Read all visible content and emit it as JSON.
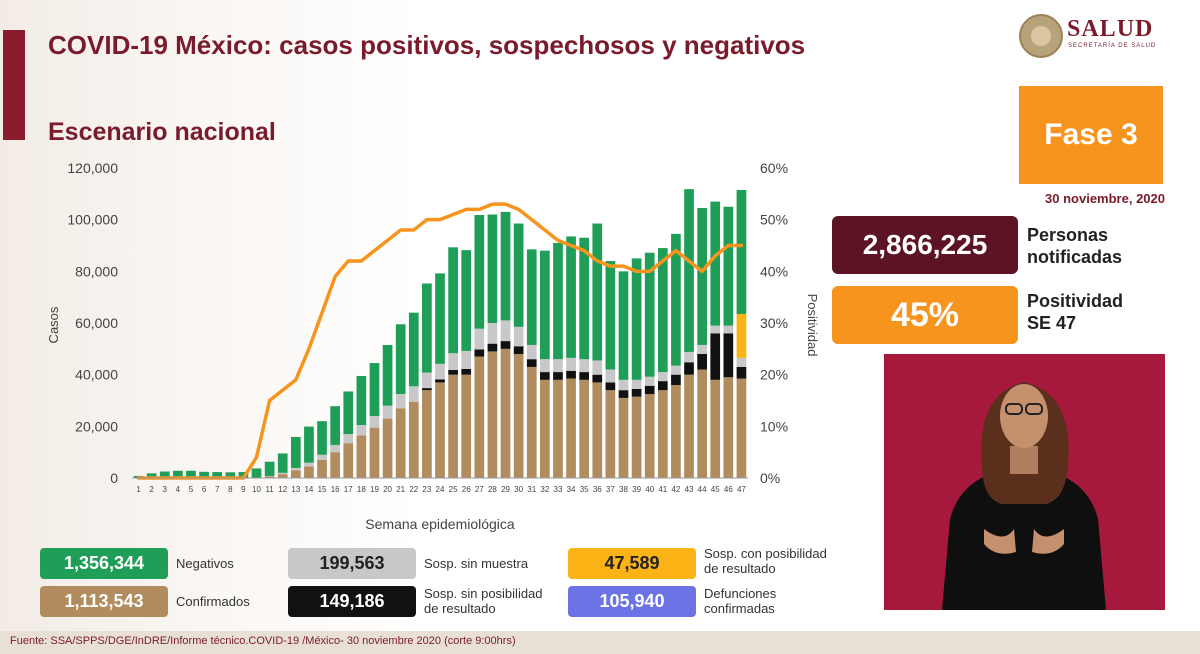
{
  "header": {
    "title": "COVID-19 México: casos positivos, sospechosos y negativos",
    "subtitle": "Escenario nacional"
  },
  "logo": {
    "name": "SALUD",
    "sub": "SECRETARÍA DE SALUD"
  },
  "phase": {
    "label": "Fase 3",
    "date": "30 noviembre, 2020"
  },
  "stats": {
    "notified_value": "2,866,225",
    "notified_label_1": "Personas",
    "notified_label_2": "notificadas",
    "positivity_value": "45%",
    "positivity_label_1": "Positividad",
    "positivity_label_2": "SE 47"
  },
  "legend": {
    "negativos_value": "1,356,344",
    "negativos_label": "Negativos",
    "confirmados_value": "1,113,543",
    "confirmados_label": "Confirmados",
    "sin_muestra_value": "199,563",
    "sin_muestra_label": "Sosp. sin muestra",
    "sin_posibilidad_value": "149,186",
    "sin_posibilidad_label_1": "Sosp. sin posibilidad",
    "sin_posibilidad_label_2": "de resultado",
    "con_posibilidad_value": "47,589",
    "con_posibilidad_label_1": "Sosp. con posibilidad",
    "con_posibilidad_label_2": "de resultado",
    "defunciones_value": "105,940",
    "defunciones_label_1": "Defunciones",
    "defunciones_label_2": "confirmadas"
  },
  "footer": {
    "source": "Fuente: SSA/SPPS/DGE/InDRE/Informe técnico.COVID-19 /México- 30 noviembre 2020 (corte 9:00hrs)"
  },
  "colors": {
    "negativos": "#1e9e57",
    "confirmados": "#b08c5e",
    "sin_muestra": "#c8c8c8",
    "sin_posibilidad": "#111111",
    "con_posibilidad": "#fbb316",
    "defunciones": "#6b73e6",
    "positividad": "#f7941d"
  },
  "chart_data": {
    "type": "bar",
    "stacked": true,
    "xlabel": "Semana epidemiológica",
    "ylabel": "Casos",
    "y2label": "Positividad",
    "ylim": [
      0,
      120000
    ],
    "y2lim": [
      0,
      60
    ],
    "yticks": [
      "0",
      "20,000",
      "40,000",
      "60,000",
      "80,000",
      "100,000",
      "120,000"
    ],
    "y2ticks": [
      "0%",
      "10%",
      "20%",
      "30%",
      "40%",
      "50%",
      "60%"
    ],
    "grid": false,
    "categories": [
      "1",
      "2",
      "3",
      "4",
      "5",
      "6",
      "7",
      "8",
      "9",
      "10",
      "11",
      "12",
      "13",
      "14",
      "15",
      "16",
      "17",
      "18",
      "19",
      "20",
      "21",
      "22",
      "23",
      "24",
      "25",
      "26",
      "27",
      "28",
      "29",
      "30",
      "31",
      "32",
      "33",
      "34",
      "35",
      "36",
      "37",
      "38",
      "39",
      "40",
      "41",
      "42",
      "43",
      "44",
      "45",
      "46",
      "47"
    ],
    "series": [
      {
        "name": "Confirmados",
        "color_key": "confirmados",
        "values": [
          0,
          0,
          0,
          0,
          0,
          0,
          0,
          0,
          0,
          100,
          600,
          1500,
          3000,
          4500,
          7000,
          10000,
          13500,
          16500,
          19500,
          23000,
          27000,
          29500,
          34000,
          37000,
          40000,
          40000,
          47000,
          49000,
          50000,
          48000,
          43000,
          38000,
          38000,
          38500,
          38000,
          37000,
          34000,
          31000,
          31500,
          32500,
          34000,
          36000,
          40000,
          42000,
          38000,
          39000,
          38500
        ]
      },
      {
        "name": "Sosp. sin posibilidad de resultado",
        "color_key": "sin_posibilidad",
        "values": [
          0,
          0,
          0,
          0,
          0,
          0,
          0,
          0,
          0,
          0,
          0,
          0,
          0,
          0,
          0,
          0,
          0,
          0,
          0,
          0,
          0,
          0,
          800,
          1200,
          1800,
          2200,
          2800,
          3000,
          3000,
          3000,
          3000,
          3000,
          3000,
          3000,
          3000,
          3000,
          3000,
          3000,
          3000,
          3200,
          3500,
          4000,
          4800,
          6000,
          18000,
          17000,
          4500
        ]
      },
      {
        "name": "Sosp. sin muestra",
        "color_key": "sin_muestra",
        "values": [
          0,
          0,
          0,
          0,
          0,
          0,
          0,
          0,
          0,
          100,
          200,
          500,
          900,
          1400,
          2000,
          2800,
          3500,
          4000,
          4500,
          5000,
          5500,
          6000,
          6000,
          6000,
          6500,
          7000,
          8000,
          8000,
          8000,
          7500,
          5500,
          5000,
          5000,
          5000,
          5000,
          5500,
          5000,
          4000,
          3500,
          3500,
          3500,
          3500,
          4000,
          3500,
          3000,
          3000,
          3500
        ]
      },
      {
        "name": "Sosp. con posibilidad de resultado",
        "color_key": "con_posibilidad",
        "values": [
          0,
          0,
          0,
          0,
          0,
          0,
          0,
          0,
          0,
          0,
          0,
          0,
          0,
          0,
          0,
          0,
          0,
          0,
          0,
          0,
          0,
          0,
          0,
          0,
          0,
          0,
          0,
          0,
          0,
          0,
          0,
          0,
          0,
          0,
          0,
          0,
          0,
          0,
          0,
          0,
          0,
          0,
          0,
          0,
          0,
          0,
          17000
        ]
      },
      {
        "name": "Negativos",
        "color_key": "negativos",
        "values": [
          800,
          1800,
          2500,
          2800,
          2800,
          2400,
          2300,
          2200,
          2300,
          3500,
          5500,
          7500,
          12000,
          14000,
          13000,
          15000,
          16500,
          19000,
          20500,
          23500,
          27000,
          28500,
          34500,
          35000,
          41000,
          39000,
          44000,
          42000,
          42000,
          40000,
          37000,
          42000,
          45000,
          47000,
          47000,
          53000,
          42000,
          42000,
          47000,
          48000,
          48000,
          51000,
          63000,
          53000,
          48000,
          46000,
          48000
        ]
      }
    ],
    "line": {
      "name": "Positividad",
      "color_key": "positividad",
      "axis": "right",
      "values": [
        0,
        0,
        0,
        0,
        0,
        0,
        0,
        0,
        0,
        4,
        15,
        17,
        19,
        25,
        32,
        39,
        42,
        42,
        44,
        46,
        48,
        48,
        50,
        50,
        51,
        52,
        52,
        53,
        53,
        52,
        50,
        48,
        46,
        45,
        44,
        42,
        41,
        41,
        40,
        40,
        42,
        44,
        42,
        40,
        43,
        45,
        45
      ]
    }
  }
}
